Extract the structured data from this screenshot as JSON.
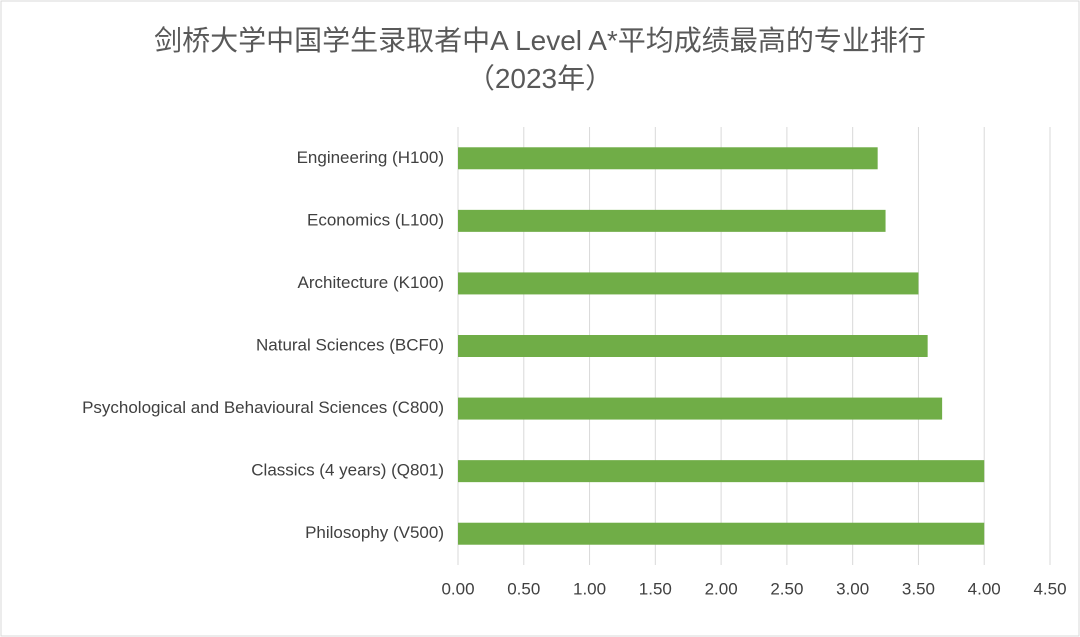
{
  "chart_data": {
    "type": "barh",
    "title": "剑桥大学中国学生录取者中A Level A*平均成绩最高的专业排行（2023年）",
    "categories": [
      "Engineering (H100)",
      "Economics (L100)",
      "Architecture (K100)",
      "Natural Sciences (BCF0)",
      "Psychological and Behavioural Sciences (C800)",
      "Classics (4 years) (Q801)",
      "Philosophy (V500)"
    ],
    "values": [
      3.19,
      3.25,
      3.5,
      3.57,
      3.68,
      4.0,
      4.0
    ],
    "color": "#70ad47",
    "xlim": [
      0,
      4.5
    ],
    "xticks": [
      {
        "value": 0,
        "label": "0.00"
      },
      {
        "value": 0.5,
        "label": "0.50"
      },
      {
        "value": 1,
        "label": "1.00"
      },
      {
        "value": 1.5,
        "label": "1.50"
      },
      {
        "value": 2,
        "label": "2.00"
      },
      {
        "value": 2.5,
        "label": "2.50"
      },
      {
        "value": 3,
        "label": "3.00"
      },
      {
        "value": 3.5,
        "label": "3.50"
      },
      {
        "value": 4,
        "label": "4.00"
      },
      {
        "value": 4.5,
        "label": "4.50"
      }
    ],
    "grid": true
  }
}
